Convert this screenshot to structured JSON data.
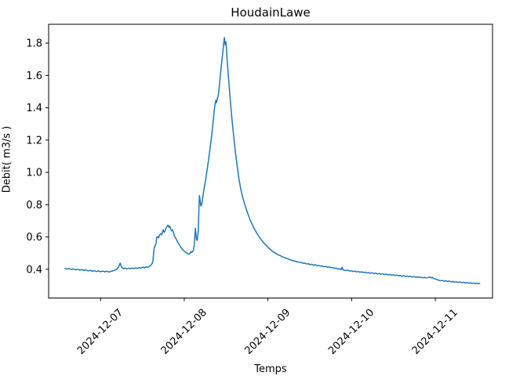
{
  "chart_data": {
    "type": "line",
    "title": "HoudainLawe",
    "xlabel": "Temps",
    "ylabel": "Debit( m3/s )",
    "grid": false,
    "legend": null,
    "line_color": "#1f77b4",
    "x_unit": "hours since 2024-12-06 00:00",
    "xlim_hours": [
      9.1,
      136.4
    ],
    "ylim": [
      0.222,
      1.917
    ],
    "x_ticks": [
      {
        "hour": 24,
        "label": "2024-12-07"
      },
      {
        "hour": 48,
        "label": "2024-12-08"
      },
      {
        "hour": 72,
        "label": "2024-12-09"
      },
      {
        "hour": 96,
        "label": "2024-12-10"
      },
      {
        "hour": 120,
        "label": "2024-12-11"
      }
    ],
    "y_ticks": [
      {
        "value": 0.4,
        "label": "0.4"
      },
      {
        "value": 0.6,
        "label": "0.6"
      },
      {
        "value": 0.8,
        "label": "0.8"
      },
      {
        "value": 1.0,
        "label": "1.0"
      },
      {
        "value": 1.2,
        "label": "1.2"
      },
      {
        "value": 1.4,
        "label": "1.4"
      },
      {
        "value": 1.6,
        "label": "1.6"
      },
      {
        "value": 1.8,
        "label": "1.8"
      }
    ],
    "series": [
      {
        "name": "Debit",
        "points": [
          [
            13.8,
            0.405
          ],
          [
            14.4,
            0.401
          ],
          [
            15.0,
            0.405
          ],
          [
            15.6,
            0.399
          ],
          [
            16.2,
            0.402
          ],
          [
            16.8,
            0.397
          ],
          [
            17.4,
            0.4
          ],
          [
            18.0,
            0.395
          ],
          [
            18.6,
            0.398
          ],
          [
            19.2,
            0.393
          ],
          [
            19.8,
            0.396
          ],
          [
            20.4,
            0.39
          ],
          [
            21.0,
            0.394
          ],
          [
            21.6,
            0.388
          ],
          [
            22.2,
            0.391
          ],
          [
            22.8,
            0.386
          ],
          [
            23.4,
            0.39
          ],
          [
            24.0,
            0.385
          ],
          [
            24.6,
            0.389
          ],
          [
            25.2,
            0.384
          ],
          [
            25.8,
            0.388
          ],
          [
            26.4,
            0.383
          ],
          [
            27.0,
            0.387
          ],
          [
            27.6,
            0.391
          ],
          [
            28.2,
            0.395
          ],
          [
            28.7,
            0.402
          ],
          [
            29.1,
            0.412
          ],
          [
            29.45,
            0.431
          ],
          [
            29.65,
            0.438
          ],
          [
            29.9,
            0.419
          ],
          [
            30.2,
            0.408
          ],
          [
            30.6,
            0.403
          ],
          [
            31.1,
            0.408
          ],
          [
            31.6,
            0.402
          ],
          [
            32.1,
            0.407
          ],
          [
            32.6,
            0.403
          ],
          [
            33.1,
            0.408
          ],
          [
            33.6,
            0.404
          ],
          [
            34.1,
            0.409
          ],
          [
            34.6,
            0.405
          ],
          [
            35.1,
            0.411
          ],
          [
            35.6,
            0.407
          ],
          [
            36.1,
            0.413
          ],
          [
            36.6,
            0.409
          ],
          [
            37.1,
            0.416
          ],
          [
            37.6,
            0.412
          ],
          [
            38.1,
            0.42
          ],
          [
            38.5,
            0.427
          ],
          [
            38.8,
            0.437
          ],
          [
            39.0,
            0.447
          ],
          [
            39.2,
            0.5
          ],
          [
            39.4,
            0.534
          ],
          [
            39.6,
            0.542
          ],
          [
            39.9,
            0.56
          ],
          [
            40.1,
            0.598
          ],
          [
            40.35,
            0.602
          ],
          [
            40.6,
            0.594
          ],
          [
            40.9,
            0.612
          ],
          [
            41.2,
            0.62
          ],
          [
            41.5,
            0.612
          ],
          [
            41.8,
            0.634
          ],
          [
            42.0,
            0.644
          ],
          [
            42.2,
            0.628
          ],
          [
            42.5,
            0.64
          ],
          [
            42.8,
            0.655
          ],
          [
            43.1,
            0.668
          ],
          [
            43.35,
            0.673
          ],
          [
            43.6,
            0.66
          ],
          [
            43.85,
            0.667
          ],
          [
            44.1,
            0.652
          ],
          [
            44.35,
            0.638
          ],
          [
            44.6,
            0.645
          ],
          [
            44.9,
            0.628
          ],
          [
            45.2,
            0.605
          ],
          [
            45.5,
            0.594
          ],
          [
            45.8,
            0.582
          ],
          [
            46.1,
            0.568
          ],
          [
            46.4,
            0.558
          ],
          [
            46.7,
            0.547
          ],
          [
            47.0,
            0.537
          ],
          [
            47.3,
            0.528
          ],
          [
            47.6,
            0.52
          ],
          [
            47.9,
            0.514
          ],
          [
            48.2,
            0.509
          ],
          [
            48.5,
            0.504
          ],
          [
            48.8,
            0.5
          ],
          [
            49.1,
            0.496
          ],
          [
            49.4,
            0.493
          ],
          [
            49.6,
            0.499
          ],
          [
            49.9,
            0.509
          ],
          [
            50.15,
            0.504
          ],
          [
            50.4,
            0.511
          ],
          [
            50.65,
            0.52
          ],
          [
            50.9,
            0.558
          ],
          [
            51.05,
            0.612
          ],
          [
            51.2,
            0.654
          ],
          [
            51.35,
            0.615
          ],
          [
            51.5,
            0.585
          ],
          [
            51.7,
            0.578
          ],
          [
            51.9,
            0.612
          ],
          [
            52.05,
            0.648
          ],
          [
            52.2,
            0.775
          ],
          [
            52.35,
            0.856
          ],
          [
            52.55,
            0.826
          ],
          [
            52.75,
            0.792
          ],
          [
            53.0,
            0.801
          ],
          [
            53.25,
            0.838
          ],
          [
            53.55,
            0.882
          ],
          [
            53.9,
            0.925
          ],
          [
            54.25,
            0.972
          ],
          [
            54.6,
            1.022
          ],
          [
            54.95,
            1.076
          ],
          [
            55.3,
            1.132
          ],
          [
            55.65,
            1.192
          ],
          [
            56.0,
            1.255
          ],
          [
            56.3,
            1.32
          ],
          [
            56.6,
            1.383
          ],
          [
            56.85,
            1.425
          ],
          [
            57.05,
            1.446
          ],
          [
            57.25,
            1.432
          ],
          [
            57.45,
            1.455
          ],
          [
            57.65,
            1.468
          ],
          [
            57.85,
            1.492
          ],
          [
            58.1,
            1.545
          ],
          [
            58.35,
            1.602
          ],
          [
            58.6,
            1.655
          ],
          [
            58.85,
            1.705
          ],
          [
            59.1,
            1.755
          ],
          [
            59.3,
            1.798
          ],
          [
            59.5,
            1.835
          ],
          [
            59.65,
            1.802
          ],
          [
            59.8,
            1.788
          ],
          [
            59.95,
            1.808
          ],
          [
            60.1,
            1.762
          ],
          [
            60.3,
            1.695
          ],
          [
            60.55,
            1.625
          ],
          [
            60.8,
            1.555
          ],
          [
            61.1,
            1.472
          ],
          [
            61.45,
            1.383
          ],
          [
            61.8,
            1.302
          ],
          [
            62.2,
            1.218
          ],
          [
            62.65,
            1.128
          ],
          [
            63.1,
            1.052
          ],
          [
            63.6,
            0.972
          ],
          [
            64.1,
            0.908
          ],
          [
            64.6,
            0.858
          ],
          [
            65.1,
            0.818
          ],
          [
            65.6,
            0.785
          ],
          [
            66.1,
            0.752
          ],
          [
            66.6,
            0.722
          ],
          [
            67.1,
            0.695
          ],
          [
            67.6,
            0.672
          ],
          [
            68.1,
            0.65
          ],
          [
            68.6,
            0.631
          ],
          [
            69.1,
            0.613
          ],
          [
            69.6,
            0.597
          ],
          [
            70.1,
            0.582
          ],
          [
            70.6,
            0.568
          ],
          [
            71.1,
            0.556
          ],
          [
            71.6,
            0.545
          ],
          [
            72.1,
            0.534
          ],
          [
            72.6,
            0.524
          ],
          [
            73.1,
            0.515
          ],
          [
            73.6,
            0.507
          ],
          [
            74.1,
            0.5
          ],
          [
            74.6,
            0.494
          ],
          [
            75.1,
            0.488
          ],
          [
            75.6,
            0.484
          ],
          [
            76.1,
            0.477
          ],
          [
            76.6,
            0.474
          ],
          [
            77.1,
            0.468
          ],
          [
            77.6,
            0.466
          ],
          [
            78.1,
            0.46
          ],
          [
            78.6,
            0.458
          ],
          [
            79.1,
            0.453
          ],
          [
            79.6,
            0.452
          ],
          [
            80.1,
            0.447
          ],
          [
            80.6,
            0.447
          ],
          [
            81.1,
            0.442
          ],
          [
            81.6,
            0.442
          ],
          [
            82.1,
            0.437
          ],
          [
            82.6,
            0.438
          ],
          [
            83.1,
            0.433
          ],
          [
            83.6,
            0.434
          ],
          [
            84.1,
            0.429
          ],
          [
            84.6,
            0.431
          ],
          [
            85.1,
            0.425
          ],
          [
            85.6,
            0.428
          ],
          [
            86.1,
            0.422
          ],
          [
            86.6,
            0.424
          ],
          [
            87.1,
            0.419
          ],
          [
            87.6,
            0.421
          ],
          [
            88.1,
            0.415
          ],
          [
            88.6,
            0.418
          ],
          [
            89.1,
            0.412
          ],
          [
            89.6,
            0.415
          ],
          [
            90.1,
            0.409
          ],
          [
            90.6,
            0.411
          ],
          [
            91.1,
            0.405
          ],
          [
            91.6,
            0.407
          ],
          [
            92.1,
            0.401
          ],
          [
            92.6,
            0.403
          ],
          [
            93.0,
            0.398
          ],
          [
            93.25,
            0.413
          ],
          [
            93.5,
            0.397
          ],
          [
            93.9,
            0.394
          ],
          [
            94.4,
            0.392
          ],
          [
            94.9,
            0.394
          ],
          [
            95.4,
            0.389
          ],
          [
            95.9,
            0.391
          ],
          [
            96.4,
            0.386
          ],
          [
            96.9,
            0.389
          ],
          [
            97.4,
            0.384
          ],
          [
            97.9,
            0.386
          ],
          [
            98.4,
            0.382
          ],
          [
            98.9,
            0.384
          ],
          [
            99.4,
            0.38
          ],
          [
            99.9,
            0.382
          ],
          [
            100.4,
            0.377
          ],
          [
            100.9,
            0.38
          ],
          [
            101.4,
            0.375
          ],
          [
            101.9,
            0.378
          ],
          [
            102.4,
            0.373
          ],
          [
            102.9,
            0.376
          ],
          [
            103.4,
            0.371
          ],
          [
            103.9,
            0.374
          ],
          [
            104.4,
            0.369
          ],
          [
            104.9,
            0.372
          ],
          [
            105.4,
            0.367
          ],
          [
            105.9,
            0.37
          ],
          [
            106.4,
            0.365
          ],
          [
            106.9,
            0.368
          ],
          [
            107.4,
            0.363
          ],
          [
            107.9,
            0.366
          ],
          [
            108.4,
            0.361
          ],
          [
            108.9,
            0.364
          ],
          [
            109.4,
            0.359
          ],
          [
            109.9,
            0.362
          ],
          [
            110.4,
            0.357
          ],
          [
            110.9,
            0.36
          ],
          [
            111.4,
            0.355
          ],
          [
            111.9,
            0.358
          ],
          [
            112.4,
            0.354
          ],
          [
            112.9,
            0.356
          ],
          [
            113.4,
            0.352
          ],
          [
            113.9,
            0.355
          ],
          [
            114.4,
            0.35
          ],
          [
            114.9,
            0.353
          ],
          [
            115.4,
            0.349
          ],
          [
            115.9,
            0.351
          ],
          [
            116.4,
            0.347
          ],
          [
            116.9,
            0.35
          ],
          [
            117.4,
            0.346
          ],
          [
            117.9,
            0.349
          ],
          [
            118.3,
            0.352
          ],
          [
            118.7,
            0.347
          ],
          [
            119.1,
            0.35
          ],
          [
            119.5,
            0.343
          ],
          [
            120.0,
            0.34
          ],
          [
            120.5,
            0.336
          ],
          [
            121.0,
            0.332
          ],
          [
            121.5,
            0.329
          ],
          [
            122.0,
            0.331
          ],
          [
            122.5,
            0.326
          ],
          [
            123.0,
            0.329
          ],
          [
            123.5,
            0.324
          ],
          [
            124.0,
            0.327
          ],
          [
            124.5,
            0.322
          ],
          [
            125.0,
            0.325
          ],
          [
            125.5,
            0.32
          ],
          [
            126.0,
            0.323
          ],
          [
            126.5,
            0.319
          ],
          [
            127.0,
            0.321
          ],
          [
            127.5,
            0.317
          ],
          [
            128.0,
            0.32
          ],
          [
            128.5,
            0.315
          ],
          [
            129.0,
            0.318
          ],
          [
            129.5,
            0.314
          ],
          [
            130.0,
            0.317
          ],
          [
            130.5,
            0.312
          ],
          [
            131.0,
            0.315
          ],
          [
            131.5,
            0.311
          ],
          [
            132.0,
            0.314
          ],
          [
            132.4,
            0.31
          ],
          [
            132.7,
            0.313
          ]
        ]
      }
    ]
  }
}
